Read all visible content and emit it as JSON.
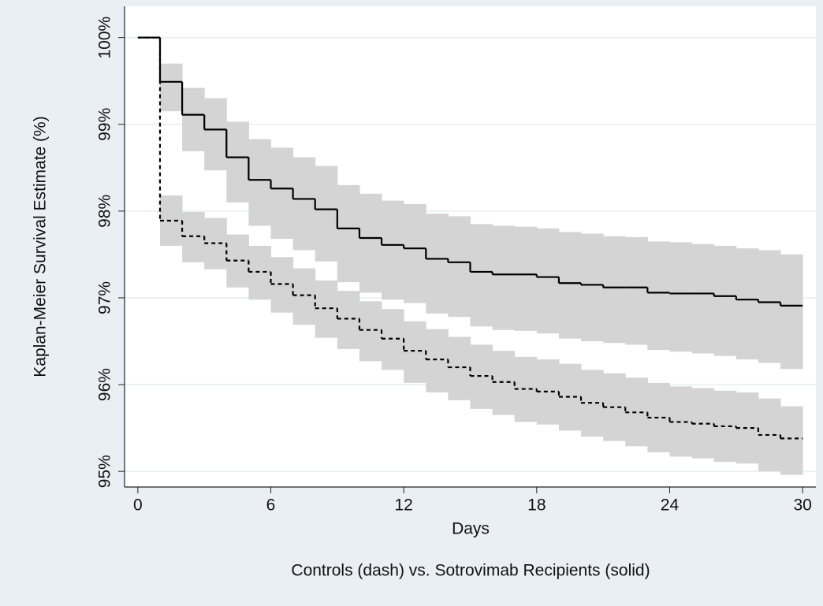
{
  "chart_data": {
    "type": "step",
    "xlabel": "Days",
    "ylabel": "Kaplan-Meier Survival Estimate (%)",
    "note": "Controls (dash) vs. Sotrovimab Recipients (solid)",
    "x": [
      0,
      1,
      2,
      3,
      4,
      5,
      6,
      7,
      8,
      9,
      10,
      11,
      12,
      13,
      14,
      15,
      16,
      17,
      18,
      19,
      20,
      21,
      22,
      23,
      24,
      25,
      26,
      27,
      28,
      29,
      30
    ],
    "xlim": [
      -0.6,
      30.6
    ],
    "xticks": [
      0,
      6,
      12,
      18,
      24,
      30
    ],
    "ylim": [
      94.82,
      100.36
    ],
    "yticks": [
      {
        "value": 95,
        "label": "95%"
      },
      {
        "value": 96,
        "label": "96%"
      },
      {
        "value": 97,
        "label": "97%"
      },
      {
        "value": 98,
        "label": "98%"
      },
      {
        "value": 99,
        "label": "99%"
      },
      {
        "value": 100,
        "label": "100%"
      }
    ],
    "grid": true,
    "band_color": "#d4d4d4",
    "series": [
      {
        "line_style": "solid",
        "color": "#000000",
        "values": [
          100,
          99.49,
          99.11,
          98.94,
          98.62,
          98.36,
          98.26,
          98.14,
          98.02,
          97.8,
          97.69,
          97.61,
          97.57,
          97.45,
          97.41,
          97.3,
          97.27,
          97.27,
          97.24,
          97.17,
          97.15,
          97.12,
          97.12,
          97.06,
          97.05,
          97.05,
          97.02,
          96.98,
          96.95,
          96.91,
          96.91
        ],
        "upper": [
          100,
          99.7,
          99.42,
          99.3,
          99.03,
          98.83,
          98.73,
          98.62,
          98.52,
          98.3,
          98.2,
          98.12,
          98.08,
          97.97,
          97.94,
          97.85,
          97.83,
          97.82,
          97.8,
          97.76,
          97.74,
          97.71,
          97.7,
          97.65,
          97.64,
          97.62,
          97.6,
          97.57,
          97.55,
          97.5,
          97.5
        ],
        "lower": [
          100,
          99.15,
          98.69,
          98.47,
          98.1,
          97.83,
          97.68,
          97.55,
          97.42,
          97.18,
          97.06,
          96.98,
          96.94,
          96.82,
          96.78,
          96.67,
          96.63,
          96.62,
          96.59,
          96.53,
          96.5,
          96.48,
          96.46,
          96.4,
          96.38,
          96.36,
          96.33,
          96.29,
          96.25,
          96.18,
          96.18
        ]
      },
      {
        "line_style": "dashed",
        "color": "#000000",
        "values": [
          100,
          97.89,
          97.71,
          97.63,
          97.43,
          97.3,
          97.16,
          97.03,
          96.88,
          96.76,
          96.63,
          96.53,
          96.39,
          96.29,
          96.2,
          96.1,
          96.03,
          95.95,
          95.92,
          95.86,
          95.79,
          95.74,
          95.68,
          95.62,
          95.57,
          95.55,
          95.52,
          95.5,
          95.42,
          95.38,
          95.38
        ],
        "upper": [
          100,
          98.18,
          97.99,
          97.92,
          97.73,
          97.6,
          97.47,
          97.34,
          97.2,
          97.08,
          96.96,
          96.87,
          96.73,
          96.64,
          96.55,
          96.46,
          96.39,
          96.32,
          96.29,
          96.24,
          96.17,
          96.13,
          96.08,
          96.02,
          95.98,
          95.96,
          95.93,
          95.91,
          95.84,
          95.75,
          95.75
        ],
        "lower": [
          100,
          97.6,
          97.41,
          97.33,
          97.12,
          96.98,
          96.83,
          96.69,
          96.54,
          96.41,
          96.27,
          96.17,
          96.02,
          95.91,
          95.82,
          95.72,
          95.65,
          95.57,
          95.54,
          95.47,
          95.4,
          95.35,
          95.29,
          95.22,
          95.17,
          95.15,
          95.11,
          95.09,
          95,
          94.96,
          94.96
        ]
      }
    ]
  }
}
